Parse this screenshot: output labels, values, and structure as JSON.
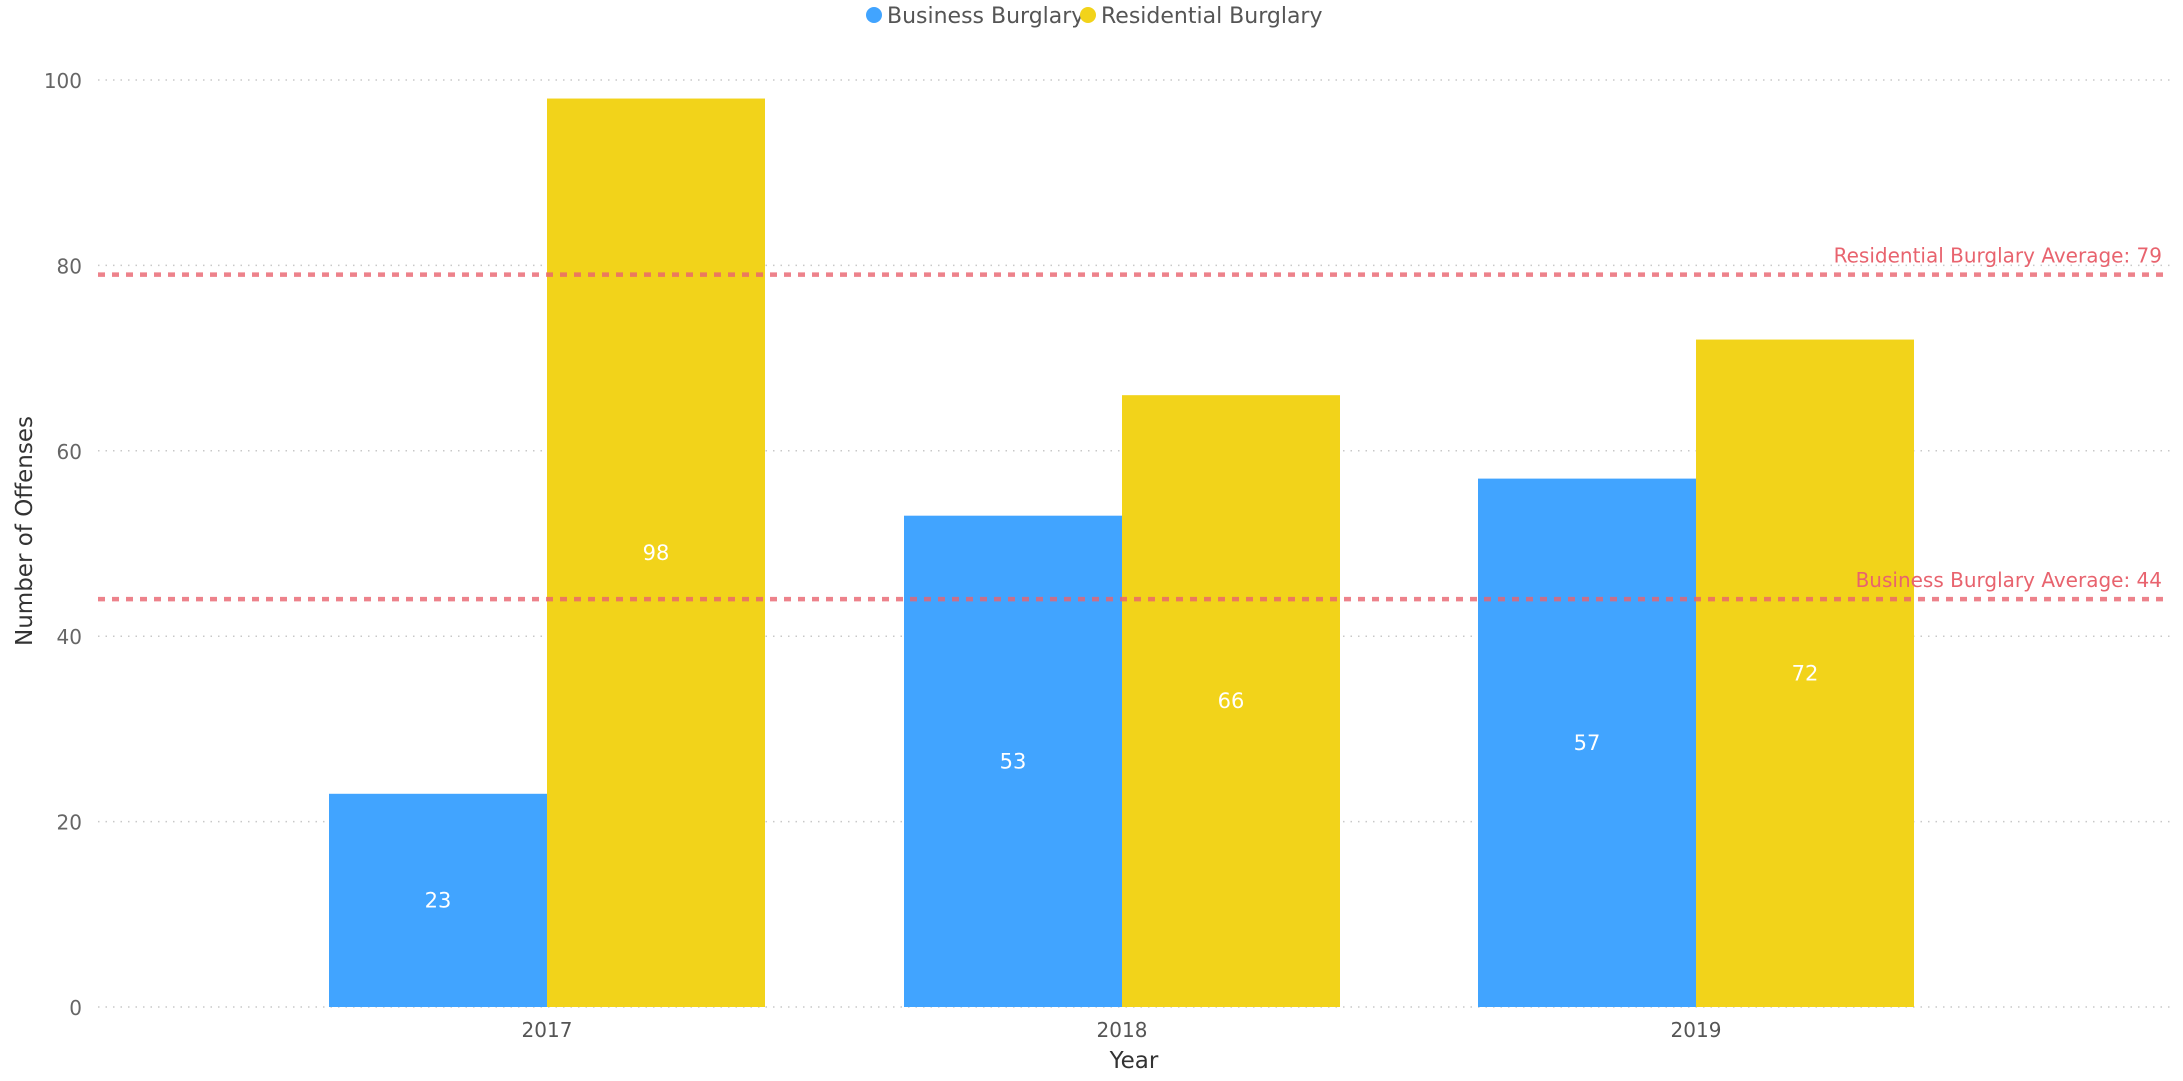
{
  "legend": {
    "items": [
      {
        "label": "Business Burglary",
        "color": "#41A4FF"
      },
      {
        "label": "Residential Burglary",
        "color": "#F2D31A"
      }
    ]
  },
  "chart_data": {
    "type": "bar",
    "xlabel": "Year",
    "ylabel": "Number of Offenses",
    "categories": [
      "2017",
      "2018",
      "2019"
    ],
    "series": [
      {
        "name": "Business Burglary",
        "values": [
          23,
          53,
          57
        ],
        "color": "#41A4FF"
      },
      {
        "name": "Residential Burglary",
        "values": [
          98,
          66,
          72
        ],
        "color": "#F2D31A"
      }
    ],
    "ylim": [
      0,
      100
    ],
    "yticks": [
      "0",
      "20",
      "40",
      "60",
      "80",
      "100"
    ],
    "grid": true,
    "legend_position": "top-center",
    "reference_lines": [
      {
        "label": "Residential Burglary Average: 79",
        "value": 79,
        "color": "#E8636E"
      },
      {
        "label": "Business Burglary Average: 44",
        "value": 44,
        "color": "#E8636E"
      }
    ]
  }
}
